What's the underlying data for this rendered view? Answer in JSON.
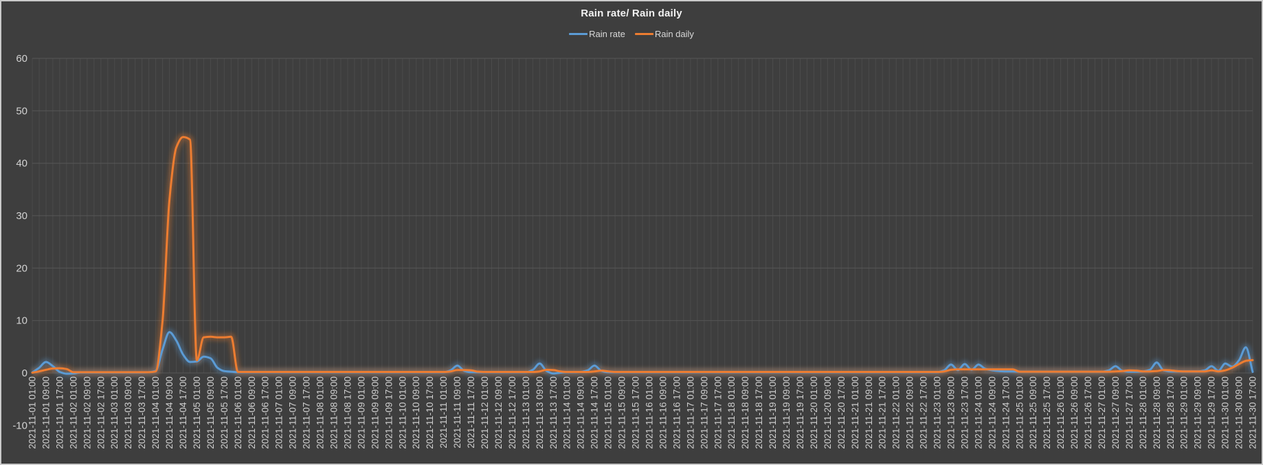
{
  "title": "Rain rate/ Rain daily",
  "colors": {
    "background": "#3E3E3E",
    "frame_border": "#C9C9C9",
    "title_text": "#F2F2F2",
    "tick_text": "#D2D2D2",
    "rain_rate": "#5B9BD5",
    "rain_daily": "#ED7D31",
    "grid_vertical": "#4B4B4B",
    "grid_horizontal": "#575757"
  },
  "chart_data": {
    "type": "line",
    "title": "Rain rate/ Rain daily",
    "legend_position": "top-center",
    "grid": {
      "vertical": true,
      "horizontal": true,
      "vertical_color": "#4B4B4B",
      "horizontal_color": "#575757"
    },
    "x_start": "2021-11-01 01:00",
    "x_end": "2021-11-30 17:00",
    "x_step_hours": 4,
    "ylim": [
      -10,
      60
    ],
    "y_ticks": [
      60,
      50,
      40,
      30,
      20,
      10,
      0,
      -10
    ],
    "x_tick_labels": [
      "2021-11-01 01:00",
      "2021-11-01 09:00",
      "2021-11-01 17:00",
      "2021-11-02 01:00",
      "2021-11-02 09:00",
      "2021-11-02 17:00",
      "2021-11-03 01:00",
      "2021-11-03 09:00",
      "2021-11-03 17:00",
      "2021-11-04 01:00",
      "2021-11-04 09:00",
      "2021-11-04 17:00",
      "2021-11-05 01:00",
      "2021-11-05 09:00",
      "2021-11-05 17:00",
      "2021-11-06 01:00",
      "2021-11-06 09:00",
      "2021-11-06 17:00",
      "2021-11-07 01:00",
      "2021-11-07 09:00",
      "2021-11-07 17:00",
      "2021-11-08 01:00",
      "2021-11-08 09:00",
      "2021-11-08 17:00",
      "2021-11-09 01:00",
      "2021-11-09 09:00",
      "2021-11-09 17:00",
      "2021-11-10 01:00",
      "2021-11-10 09:00",
      "2021-11-10 17:00",
      "2021-11-11 01:00",
      "2021-11-11 09:00",
      "2021-11-11 17:00",
      "2021-11-12 01:00",
      "2021-11-12 09:00",
      "2021-11-12 17:00",
      "2021-11-13 01:00",
      "2021-11-13 09:00",
      "2021-11-13 17:00",
      "2021-11-14 01:00",
      "2021-11-14 09:00",
      "2021-11-14 17:00",
      "2021-11-15 01:00",
      "2021-11-15 09:00",
      "2021-11-15 17:00",
      "2021-11-16 01:00",
      "2021-11-16 09:00",
      "2021-11-16 17:00",
      "2021-11-17 01:00",
      "2021-11-17 09:00",
      "2021-11-17 17:00",
      "2021-11-18 01:00",
      "2021-11-18 09:00",
      "2021-11-18 17:00",
      "2021-11-19 01:00",
      "2021-11-19 09:00",
      "2021-11-19 17:00",
      "2021-11-20 01:00",
      "2021-11-20 09:00",
      "2021-11-20 17:00",
      "2021-11-21 01:00",
      "2021-11-21 09:00",
      "2021-11-21 17:00",
      "2021-11-22 01:00",
      "2021-11-22 09:00",
      "2021-11-22 17:00",
      "2021-11-23 01:00",
      "2021-11-23 09:00",
      "2021-11-23 17:00",
      "2021-11-24 01:00",
      "2021-11-24 09:00",
      "2021-11-24 17:00",
      "2021-11-25 01:00",
      "2021-11-25 09:00",
      "2021-11-25 17:00",
      "2021-11-26 01:00",
      "2021-11-26 09:00",
      "2021-11-26 17:00",
      "2021-11-27 01:00",
      "2021-11-27 09:00",
      "2021-11-27 17:00",
      "2021-11-28 01:00",
      "2021-11-28 09:00",
      "2021-11-28 17:00",
      "2021-11-29 01:00",
      "2021-11-29 09:00",
      "2021-11-29 17:00",
      "2021-11-30 01:00",
      "2021-11-30 09:00",
      "2021-11-30 17:00"
    ],
    "series": [
      {
        "name": "Rain rate",
        "color": "#5B9BD5",
        "values": [
          0.1,
          1.0,
          2.1,
          1.3,
          0.2,
          -0.15,
          -0.1,
          0.1,
          0.1,
          0.1,
          0.1,
          0.1,
          0.1,
          0.1,
          0.1,
          0.1,
          0.1,
          0.15,
          0.4,
          4.5,
          7.8,
          6.2,
          3.5,
          2.1,
          2.2,
          3.1,
          2.8,
          1.0,
          0.35,
          0.25,
          0.15,
          0.15,
          0.15,
          0.15,
          0.15,
          0.15,
          0.15,
          0.15,
          0.15,
          0.15,
          0.15,
          0.15,
          0.15,
          0.15,
          0.15,
          0.15,
          0.15,
          0.15,
          0.15,
          0.15,
          0.15,
          0.15,
          0.15,
          0.15,
          0.15,
          0.15,
          0.15,
          0.15,
          0.15,
          0.15,
          0.15,
          0.5,
          1.4,
          0.4,
          0.15,
          0.15,
          0.15,
          0.15,
          0.15,
          0.15,
          0.15,
          0.15,
          0.15,
          0.6,
          1.8,
          0.4,
          -0.1,
          0.05,
          0.15,
          0.15,
          0.2,
          0.5,
          1.4,
          0.4,
          0.15,
          0.15,
          0.15,
          0.15,
          0.15,
          0.15,
          0.15,
          0.15,
          0.15,
          0.15,
          0.15,
          0.15,
          0.15,
          0.15,
          0.15,
          0.15,
          0.15,
          0.15,
          0.15,
          0.15,
          0.15,
          0.15,
          0.15,
          0.15,
          0.15,
          0.15,
          0.15,
          0.15,
          0.15,
          0.15,
          0.15,
          0.15,
          0.15,
          0.15,
          0.15,
          0.15,
          0.15,
          0.15,
          0.15,
          0.15,
          0.15,
          0.15,
          0.15,
          0.15,
          0.15,
          0.15,
          0.15,
          0.15,
          0.15,
          0.5,
          1.6,
          0.55,
          1.7,
          0.6,
          1.6,
          0.8,
          0.5,
          0.35,
          0.3,
          0.3,
          0.25,
          0.25,
          0.25,
          0.25,
          0.25,
          0.25,
          0.25,
          0.25,
          0.25,
          0.25,
          0.25,
          0.25,
          0.25,
          0.5,
          1.3,
          0.4,
          0.25,
          0.25,
          0.3,
          0.6,
          2.0,
          0.5,
          0.3,
          0.3,
          0.3,
          0.3,
          0.3,
          0.5,
          1.3,
          0.4,
          1.8,
          1.2,
          2.4,
          4.9,
          0.2
        ]
      },
      {
        "name": "Rain daily",
        "color": "#ED7D31",
        "values": [
          0.05,
          0.3,
          0.6,
          0.85,
          0.9,
          0.75,
          0.15,
          0.15,
          0.15,
          0.15,
          0.15,
          0.15,
          0.15,
          0.15,
          0.15,
          0.15,
          0.15,
          0.15,
          0.3,
          10,
          33,
          43,
          45,
          44.5,
          2.4,
          6.8,
          6.9,
          6.8,
          6.8,
          6.9,
          0.2,
          0.2,
          0.2,
          0.2,
          0.2,
          0.2,
          0.2,
          0.2,
          0.2,
          0.2,
          0.2,
          0.2,
          0.2,
          0.2,
          0.2,
          0.2,
          0.2,
          0.2,
          0.2,
          0.2,
          0.2,
          0.2,
          0.2,
          0.2,
          0.2,
          0.2,
          0.2,
          0.2,
          0.2,
          0.2,
          0.2,
          0.3,
          0.55,
          0.55,
          0.5,
          0.25,
          0.2,
          0.2,
          0.2,
          0.2,
          0.2,
          0.2,
          0.2,
          0.2,
          0.3,
          0.6,
          0.55,
          0.3,
          0.2,
          0.2,
          0.2,
          0.2,
          0.3,
          0.45,
          0.3,
          0.2,
          0.2,
          0.2,
          0.2,
          0.2,
          0.2,
          0.2,
          0.2,
          0.2,
          0.2,
          0.2,
          0.2,
          0.2,
          0.2,
          0.2,
          0.2,
          0.2,
          0.2,
          0.2,
          0.2,
          0.2,
          0.2,
          0.2,
          0.2,
          0.2,
          0.2,
          0.2,
          0.2,
          0.2,
          0.2,
          0.2,
          0.2,
          0.2,
          0.2,
          0.2,
          0.2,
          0.2,
          0.2,
          0.2,
          0.2,
          0.2,
          0.2,
          0.2,
          0.2,
          0.2,
          0.2,
          0.2,
          0.2,
          0.3,
          0.6,
          0.7,
          0.7,
          0.7,
          0.7,
          0.7,
          0.7,
          0.7,
          0.7,
          0.7,
          0.25,
          0.25,
          0.25,
          0.25,
          0.25,
          0.25,
          0.25,
          0.25,
          0.25,
          0.25,
          0.25,
          0.25,
          0.25,
          0.25,
          0.3,
          0.35,
          0.5,
          0.45,
          0.3,
          0.3,
          0.35,
          0.55,
          0.5,
          0.35,
          0.3,
          0.3,
          0.3,
          0.3,
          0.5,
          0.3,
          0.5,
          1.0,
          1.7,
          2.3,
          2.45
        ]
      }
    ]
  }
}
